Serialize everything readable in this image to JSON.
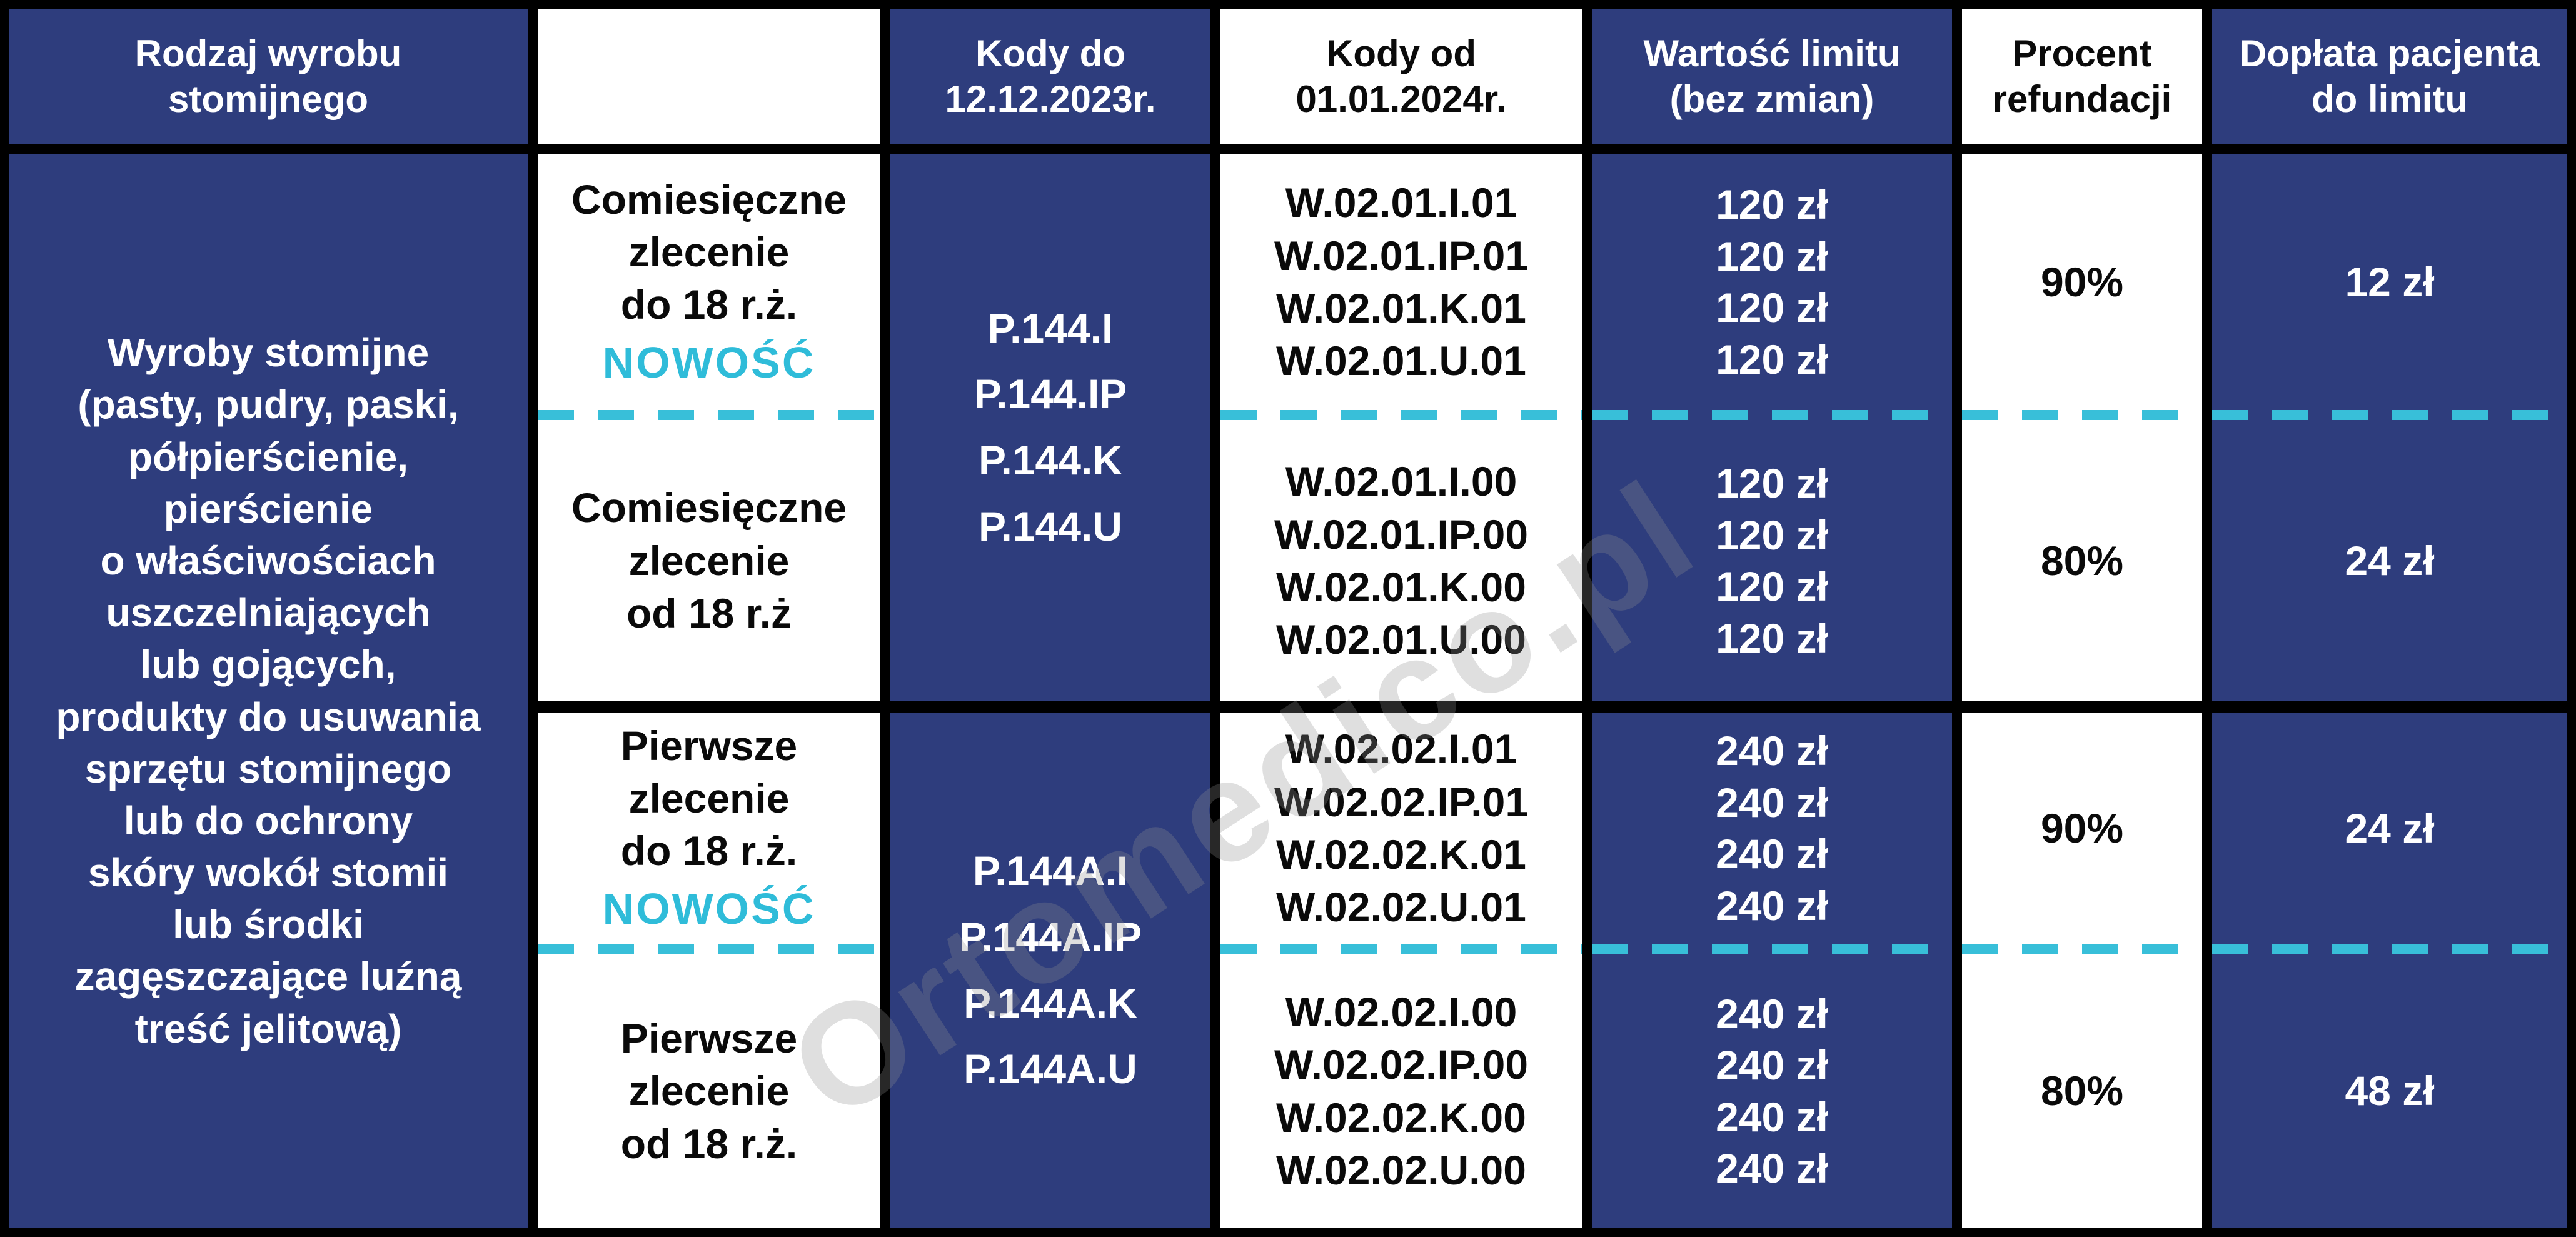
{
  "colors": {
    "navy": "#2e3d7d",
    "cyan_accent": "#38bfd9",
    "badge_cyan": "#2fbcd9",
    "border_black": "#000000",
    "white": "#ffffff"
  },
  "watermark": {
    "text": "Ortomedico.pl"
  },
  "header": {
    "col1": "Rodzaj wyrobu\nstomijnego",
    "col2": "",
    "col3": "Kody do\n12.12.2023r.",
    "col4": "Kody od\n01.01.2024r.",
    "col5": "Wartość limitu\n(bez zmian)",
    "col6": "Procent\nrefundacji",
    "col7": "Dopłata pacjenta\ndo limitu"
  },
  "product": {
    "description": "Wyroby stomijne\n(pasty, pudry, paski,\npółpierścienie,\npierścienie\no właściwościach\nuszczelniających\nlub gojących,\nprodukty do usuwania\nsprzętu stomijnego\nlub do ochrony\nskóry wokół stomii\nlub środki\nzagęszczające luźną\ntreść jelitową)"
  },
  "sections": [
    {
      "codes_old": "P.144.I\nP.144.IP\nP.144.K\nP.144.U",
      "rows": [
        {
          "order_type": "Comiesięczne\nzlecenie\ndo 18 r.ż.",
          "badge": "NOWOŚĆ",
          "codes_new": "W.02.01.I.01\nW.02.01.IP.01\nW.02.01.K.01\nW.02.01.U.01",
          "limit": "120 zł\n120 zł\n120 zł\n120 zł",
          "refund": "90%",
          "copay": "12 zł"
        },
        {
          "order_type": "Comiesięczne\nzlecenie\nod 18 r.ż",
          "badge": "",
          "codes_new": "W.02.01.I.00\nW.02.01.IP.00\nW.02.01.K.00\nW.02.01.U.00",
          "limit": "120 zł\n120 zł\n120 zł\n120 zł",
          "refund": "80%",
          "copay": "24 zł"
        }
      ]
    },
    {
      "codes_old": "P.144A.I\nP.144A.IP\nP.144A.K\nP.144A.U",
      "rows": [
        {
          "order_type": "Pierwsze\nzlecenie\ndo 18 r.ż.",
          "badge": "NOWOŚĆ",
          "codes_new": "W.02.02.I.01\nW.02.02.IP.01\nW.02.02.K.01\nW.02.02.U.01",
          "limit": "240 zł\n240 zł\n240 zł\n240 zł",
          "refund": "90%",
          "copay": "24 zł"
        },
        {
          "order_type": "Pierwsze\nzlecenie\nod 18 r.ż.",
          "badge": "",
          "codes_new": "W.02.02.I.00\nW.02.02.IP.00\nW.02.02.K.00\nW.02.02.U.00",
          "limit": "240 zł\n240 zł\n240 zł\n240 zł",
          "refund": "80%",
          "copay": "48 zł"
        }
      ]
    }
  ],
  "chart_data": {
    "type": "table",
    "title": "Refundacja wyrobów stomijnych — limity i dopłaty",
    "columns": [
      "Rodzaj wyrobu stomijnego",
      "",
      "Kody do 12.12.2023r.",
      "Kody od 01.01.2024r.",
      "Wartość limitu (bez zmian)",
      "Procent refundacji",
      "Dopłata pacjenta do limitu"
    ],
    "rows": [
      [
        "Wyroby stomijne (pasty, pudry, paski, półpierścienie, pierścienie o właściwościach uszczelniających lub gojących, produkty do usuwania sprzętu stomijnego lub do ochrony skóry wokół stomii lub środki zagęszczające luźną treść jelitową)",
        "Comiesięczne zlecenie do 18 r.ż. NOWOŚĆ",
        "P.144.I P.144.IP P.144.K P.144.U",
        "W.02.01.I.01 W.02.01.IP.01 W.02.01.K.01 W.02.01.U.01",
        "120 zł 120 zł 120 zł 120 zł",
        "90%",
        "12 zł"
      ],
      [
        "",
        "Comiesięczne zlecenie od 18 r.ż",
        "P.144.I P.144.IP P.144.K P.144.U",
        "W.02.01.I.00 W.02.01.IP.00 W.02.01.K.00 W.02.01.U.00",
        "120 zł 120 zł 120 zł 120 zł",
        "80%",
        "24 zł"
      ],
      [
        "",
        "Pierwsze zlecenie do 18 r.ż. NOWOŚĆ",
        "P.144A.I P.144A.IP P.144A.K P.144A.U",
        "W.02.02.I.01 W.02.02.IP.01 W.02.02.K.01 W.02.02.U.01",
        "240 zł 240 zł 240 zł 240 zł",
        "90%",
        "24 zł"
      ],
      [
        "",
        "Pierwsze zlecenie od 18 r.ż.",
        "P.144A.I P.144A.IP P.144A.K P.144A.U",
        "W.02.02.I.00 W.02.02.IP.00 W.02.02.K.00 W.02.02.U.00",
        "240 zł 240 zł 240 zł 240 zł",
        "80%",
        "48 zł"
      ]
    ],
    "legend_position": "none",
    "grid": "black cell borders, cyan dashed sub-row dividers"
  }
}
